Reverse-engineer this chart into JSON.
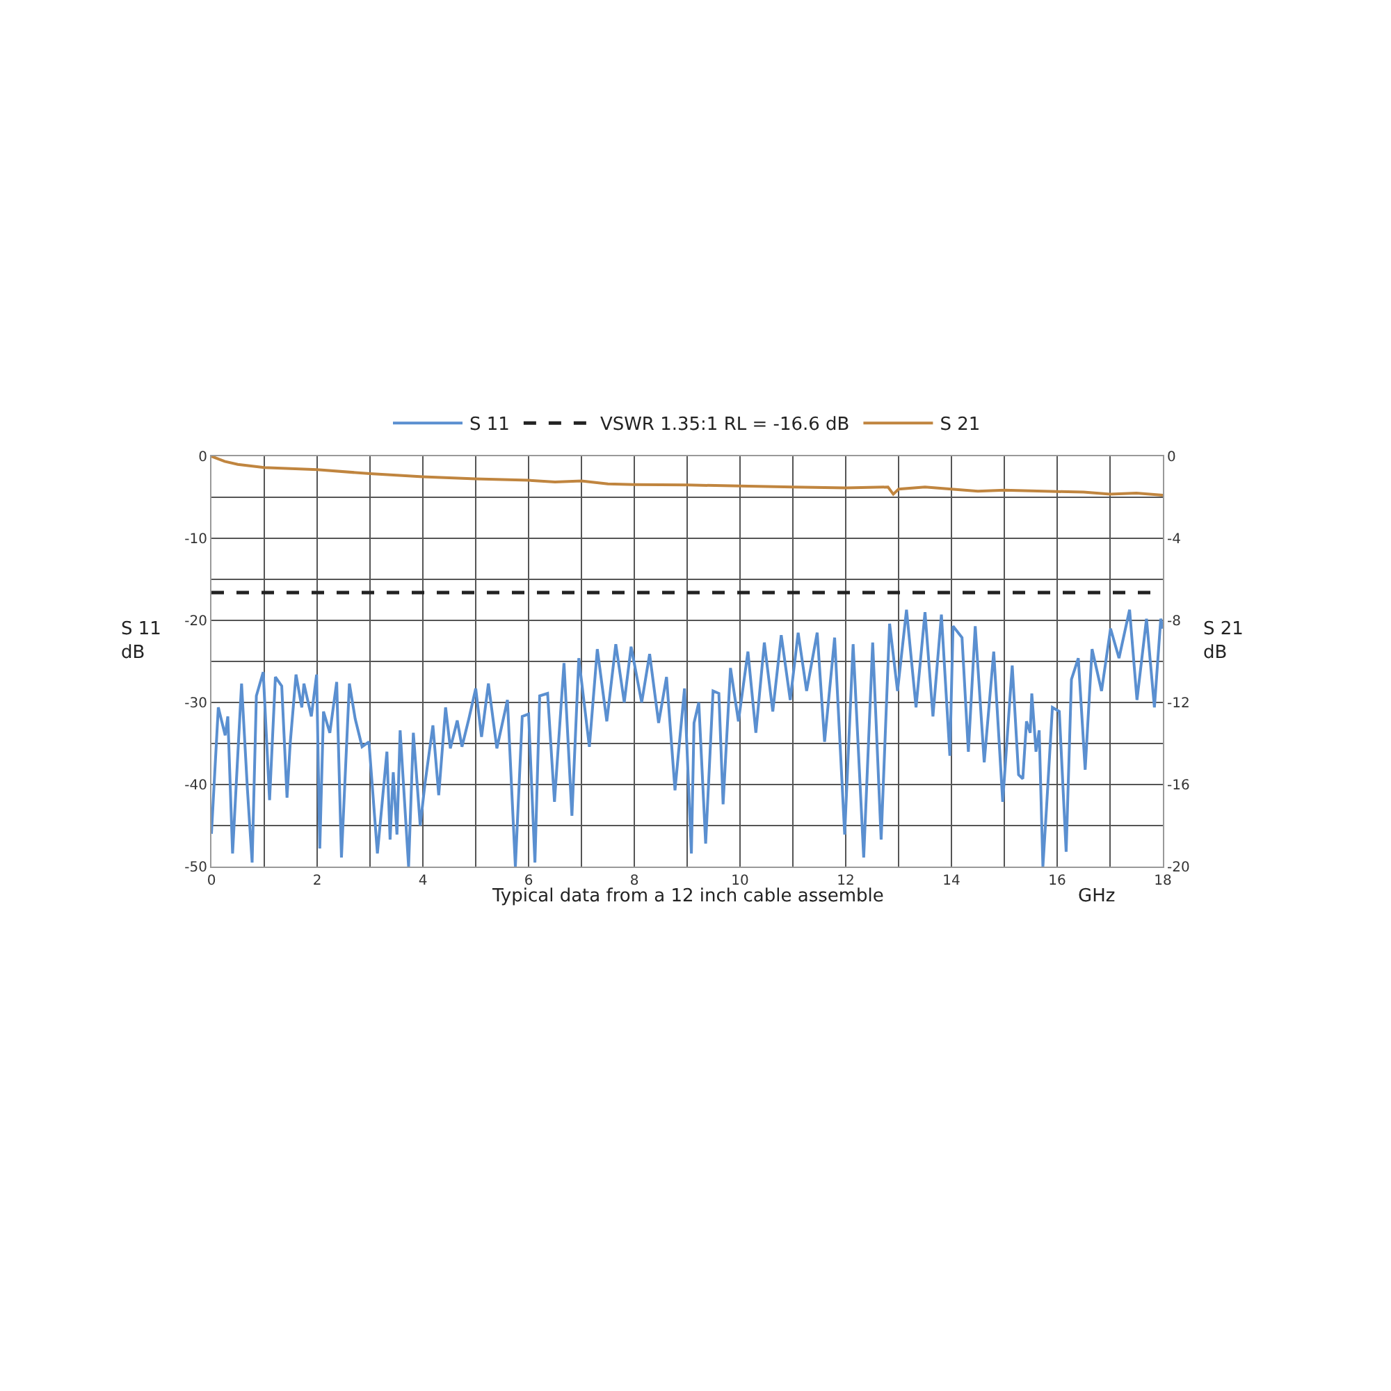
{
  "chart_data": {
    "type": "line",
    "xlabel": "GHz",
    "ylabel": "S 11\ndB",
    "y2label": "S 21\ndB",
    "annotations": [
      "Typical data from a 12 inch cable assemble"
    ],
    "xlim": [
      0,
      18
    ],
    "xticks": [
      0,
      {
        "value": 1,
        "label": null
      },
      2,
      {
        "value": 3,
        "label": null
      },
      4,
      {
        "value": 5,
        "label": null
      },
      6,
      {
        "value": 7,
        "label": null
      },
      8,
      {
        "value": 9,
        "label": null
      },
      10,
      {
        "value": 11,
        "label": null
      },
      12,
      {
        "value": 13,
        "label": null
      },
      14,
      {
        "value": 15,
        "label": null
      },
      16,
      {
        "value": 17,
        "label": null
      },
      18
    ],
    "ylim": [
      -50,
      0
    ],
    "yticks": [
      -50,
      {
        "value": -45,
        "label": null
      },
      -40,
      {
        "value": -35,
        "label": null
      },
      -30,
      {
        "value": -25,
        "label": null
      },
      -20,
      {
        "value": -15,
        "label": null
      },
      -10,
      {
        "value": -5,
        "label": null
      },
      0
    ],
    "y2lim": [
      -20,
      0
    ],
    "y2ticks": [
      -20,
      -16,
      -12,
      -8,
      -4,
      0
    ],
    "grid": true,
    "legend": "top",
    "line_style": "solid",
    "ref_lines": [
      {
        "axis": "y",
        "value": -16.6,
        "label": "VSWR 1.35:1 RL = -16.6 dB",
        "color": "#222222",
        "line_style": "dashed"
      }
    ],
    "series": [
      {
        "name": "S 11",
        "color": "#5a8fd0",
        "x": [
          0,
          0.13,
          0.26,
          0.31,
          0.4,
          0.57,
          0.68,
          0.77,
          0.85,
          0.98,
          1.1,
          1.21,
          1.33,
          1.43,
          1.49,
          1.6,
          1.71,
          1.75,
          1.89,
          1.99,
          2.05,
          2.12,
          2.24,
          2.37,
          2.46,
          2.61,
          2.72,
          2.85,
          2.98,
          3.14,
          3.32,
          3.38,
          3.44,
          3.51,
          3.57,
          3.73,
          3.82,
          3.95,
          4.04,
          4.19,
          4.3,
          4.43,
          4.52,
          4.65,
          4.74,
          4.87,
          5.0,
          5.11,
          5.24,
          5.4,
          5.6,
          5.75,
          5.88,
          6.0,
          6.12,
          6.21,
          6.36,
          6.49,
          6.67,
          6.82,
          6.95,
          7.15,
          7.3,
          7.48,
          7.65,
          7.81,
          7.94,
          8.14,
          8.29,
          8.46,
          8.61,
          8.77,
          8.95,
          9.08,
          9.13,
          9.22,
          9.35,
          9.49,
          9.6,
          9.68,
          9.82,
          9.97,
          10.15,
          10.3,
          10.46,
          10.62,
          10.78,
          10.95,
          11.1,
          11.26,
          11.46,
          11.6,
          11.79,
          11.98,
          12.14,
          12.34,
          12.51,
          12.67,
          12.83,
          12.98,
          13.15,
          13.33,
          13.5,
          13.65,
          13.81,
          13.97,
          14.03,
          14.2,
          14.32,
          14.45,
          14.62,
          14.8,
          14.97,
          15.15,
          15.27,
          15.35,
          15.42,
          15.49,
          15.52,
          15.6,
          15.66,
          15.73,
          15.8,
          15.91,
          16.04,
          16.17,
          16.27,
          16.4,
          16.53,
          16.66,
          16.84,
          17.01,
          17.17,
          17.37,
          17.51,
          17.69,
          17.84,
          17.96,
          18.0
        ],
        "values": [
          -46,
          -30.6,
          -34,
          -31.7,
          -48.4,
          -27.7,
          -40.5,
          -49.5,
          -29.2,
          -26.3,
          -41.9,
          -26.9,
          -28,
          -41.6,
          -35,
          -26.6,
          -30.6,
          -27.7,
          -31.7,
          -26.6,
          -47.8,
          -31.1,
          -33.7,
          -27.5,
          -48.9,
          -27.7,
          -32,
          -35.4,
          -34.8,
          -48.4,
          -36,
          -46.7,
          -38.5,
          -46.1,
          -33.4,
          -50,
          -33.7,
          -45,
          -39.9,
          -32.8,
          -41.3,
          -30.6,
          -35.6,
          -32.2,
          -35.4,
          -32,
          -28.3,
          -34.2,
          -27.7,
          -35.6,
          -29.7,
          -50,
          -31.7,
          -31.4,
          -49.5,
          -29.2,
          -28.9,
          -42.1,
          -25.2,
          -43.8,
          -24.6,
          -35.4,
          -23.5,
          -32.3,
          -22.9,
          -30,
          -23.2,
          -30,
          -24.1,
          -32.5,
          -26.9,
          -40.7,
          -28.3,
          -48.4,
          -32.5,
          -30,
          -47.2,
          -28.6,
          -28.9,
          -42.4,
          -25.8,
          -32.3,
          -23.8,
          -33.7,
          -22.7,
          -31.1,
          -21.8,
          -29.7,
          -21.5,
          -28.6,
          -21.5,
          -34.8,
          -22.1,
          -46.1,
          -22.9,
          -48.9,
          -22.7,
          -46.7,
          -20.4,
          -28.6,
          -18.7,
          -30.6,
          -19,
          -31.7,
          -19.3,
          -36.5,
          -20.7,
          -22.1,
          -36,
          -20.7,
          -37.3,
          -23.8,
          -42.1,
          -25.5,
          -38.8,
          -39.3,
          -32.3,
          -33.7,
          -28.9,
          -36,
          -33.4,
          -50,
          -42.7,
          -30.6,
          -31.1,
          -48.2,
          -27.2,
          -24.6,
          -38.2,
          -23.5,
          -28.6,
          -21,
          -24.6,
          -18.7,
          -29.7,
          -19.8,
          -30.6,
          -19.8,
          -21
        ]
      },
      {
        "name": "S 21",
        "color": "#c0853f",
        "axis": "y2",
        "x": [
          0,
          0.25,
          0.5,
          1,
          1.5,
          2,
          3,
          4,
          5,
          6,
          6.5,
          7,
          7.5,
          8,
          9,
          10,
          11,
          12,
          12.8,
          12.9,
          13,
          13.5,
          14,
          14.5,
          15,
          16,
          16.5,
          17,
          17.5,
          18
        ],
        "values": [
          0,
          -0.25,
          -0.4,
          -0.55,
          -0.6,
          -0.65,
          -0.85,
          -1.0,
          -1.1,
          -1.17,
          -1.25,
          -1.2,
          -1.35,
          -1.38,
          -1.4,
          -1.45,
          -1.5,
          -1.54,
          -1.5,
          -1.85,
          -1.6,
          -1.5,
          -1.6,
          -1.7,
          -1.65,
          -1.72,
          -1.75,
          -1.85,
          -1.8,
          -1.9
        ]
      }
    ]
  }
}
